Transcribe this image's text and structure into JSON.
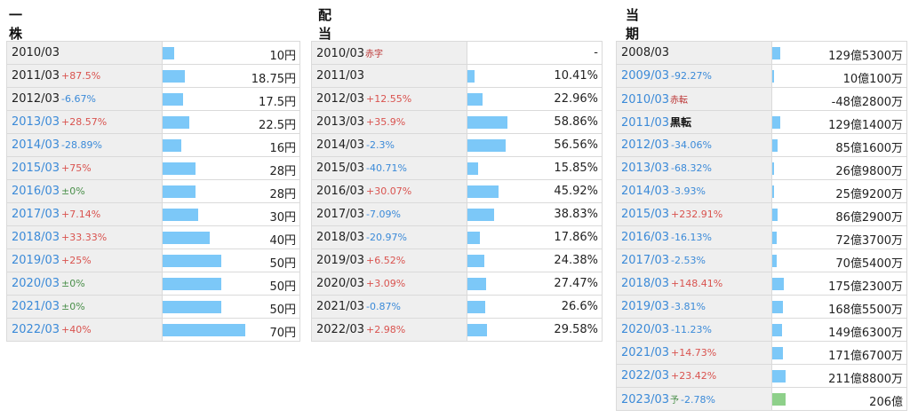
{
  "panels": [
    {
      "title": "一株配当",
      "rows": [
        {
          "year": "2010/03",
          "chg": "",
          "dir": "",
          "val": "10円",
          "bar": 0.0857
        },
        {
          "year": "2011/03",
          "chg": "+87.5%",
          "dir": "up",
          "val": "18.75円",
          "bar": 0.1607
        },
        {
          "year": "2012/03",
          "chg": "-6.67%",
          "dir": "down",
          "val": "17.5円",
          "bar": 0.15,
          "blueYear": false
        },
        {
          "year": "2013/03",
          "chg": "+28.57%",
          "dir": "up",
          "val": "22.5円",
          "bar": 0.1929,
          "blueYear": true
        },
        {
          "year": "2014/03",
          "chg": "-28.89%",
          "dir": "down",
          "val": "16円",
          "bar": 0.1371,
          "blueYear": true
        },
        {
          "year": "2015/03",
          "chg": "+75%",
          "dir": "up",
          "val": "28円",
          "bar": 0.24,
          "blueYear": true
        },
        {
          "year": "2016/03",
          "chg": "±0%",
          "dir": "flat",
          "val": "28円",
          "bar": 0.24,
          "blueYear": true
        },
        {
          "year": "2017/03",
          "chg": "+7.14%",
          "dir": "up",
          "val": "30円",
          "bar": 0.2571,
          "blueYear": true
        },
        {
          "year": "2018/03",
          "chg": "+33.33%",
          "dir": "up",
          "val": "40円",
          "bar": 0.3429,
          "blueYear": true
        },
        {
          "year": "2019/03",
          "chg": "+25%",
          "dir": "up",
          "val": "50円",
          "bar": 0.4286,
          "blueYear": true
        },
        {
          "year": "2020/03",
          "chg": "±0%",
          "dir": "flat",
          "val": "50円",
          "bar": 0.4286,
          "blueYear": true
        },
        {
          "year": "2021/03",
          "chg": "±0%",
          "dir": "flat",
          "val": "50円",
          "bar": 0.4286,
          "blueYear": true
        },
        {
          "year": "2022/03",
          "chg": "+40%",
          "dir": "up",
          "val": "70円",
          "bar": 0.6,
          "blueYear": true
        }
      ]
    },
    {
      "title": "配当性向",
      "rows": [
        {
          "year": "2010/03",
          "tag": "赤字",
          "tagType": "red",
          "chg": "",
          "dir": "",
          "val": "-",
          "bar": 0
        },
        {
          "year": "2011/03",
          "chg": "",
          "dir": "",
          "val": "10.41%",
          "bar": 0.0521
        },
        {
          "year": "2012/03",
          "chg": "+12.55%",
          "dir": "up",
          "val": "22.96%",
          "bar": 0.1148
        },
        {
          "year": "2013/03",
          "chg": "+35.9%",
          "dir": "up",
          "val": "58.86%",
          "bar": 0.2943
        },
        {
          "year": "2014/03",
          "chg": "-2.3%",
          "dir": "down",
          "val": "56.56%",
          "bar": 0.2828
        },
        {
          "year": "2015/03",
          "chg": "-40.71%",
          "dir": "down",
          "val": "15.85%",
          "bar": 0.0793
        },
        {
          "year": "2016/03",
          "chg": "+30.07%",
          "dir": "up",
          "val": "45.92%",
          "bar": 0.2296
        },
        {
          "year": "2017/03",
          "chg": "-7.09%",
          "dir": "down",
          "val": "38.83%",
          "bar": 0.1942
        },
        {
          "year": "2018/03",
          "chg": "-20.97%",
          "dir": "down",
          "val": "17.86%",
          "bar": 0.0893
        },
        {
          "year": "2019/03",
          "chg": "+6.52%",
          "dir": "up",
          "val": "24.38%",
          "bar": 0.1219
        },
        {
          "year": "2020/03",
          "chg": "+3.09%",
          "dir": "up",
          "val": "27.47%",
          "bar": 0.1374
        },
        {
          "year": "2021/03",
          "chg": "-0.87%",
          "dir": "down",
          "val": "26.6%",
          "bar": 0.133
        },
        {
          "year": "2022/03",
          "chg": "+2.98%",
          "dir": "up",
          "val": "29.58%",
          "bar": 0.1479
        }
      ]
    },
    {
      "title": "当期純利益",
      "rows": [
        {
          "year": "2008/03",
          "chg": "",
          "dir": "",
          "val": "129億5300万",
          "bar": 0.0613
        },
        {
          "year": "2009/03",
          "chg": "-92.27%",
          "dir": "down",
          "val": "10億100万",
          "bar": 0.0047,
          "blueYear": true
        },
        {
          "year": "2010/03",
          "tag": "赤転",
          "tagType": "red",
          "chg": "",
          "dir": "",
          "val": "-48億2800万",
          "bar": 0,
          "blueYear": true
        },
        {
          "year": "2011/03",
          "tag": "黒転",
          "tagType": "black",
          "chg": "",
          "dir": "",
          "val": "129億1400万",
          "bar": 0.0612,
          "blueYear": true
        },
        {
          "year": "2012/03",
          "chg": "-34.06%",
          "dir": "down",
          "val": "85億1600万",
          "bar": 0.0403,
          "blueYear": true
        },
        {
          "year": "2013/03",
          "chg": "-68.32%",
          "dir": "down",
          "val": "26億9800万",
          "bar": 0.0128,
          "blueYear": true
        },
        {
          "year": "2014/03",
          "chg": "-3.93%",
          "dir": "down",
          "val": "25億9200万",
          "bar": 0.0123,
          "blueYear": true
        },
        {
          "year": "2015/03",
          "chg": "+232.91%",
          "dir": "up",
          "val": "86億2900万",
          "bar": 0.0409,
          "blueYear": true
        },
        {
          "year": "2016/03",
          "chg": "-16.13%",
          "dir": "down",
          "val": "72億3700万",
          "bar": 0.0343,
          "blueYear": true
        },
        {
          "year": "2017/03",
          "chg": "-2.53%",
          "dir": "down",
          "val": "70億5400万",
          "bar": 0.0334,
          "blueYear": true
        },
        {
          "year": "2018/03",
          "chg": "+148.41%",
          "dir": "up",
          "val": "175億2300万",
          "bar": 0.083,
          "blueYear": true
        },
        {
          "year": "2019/03",
          "chg": "-3.81%",
          "dir": "down",
          "val": "168億5500万",
          "bar": 0.0798,
          "blueYear": true
        },
        {
          "year": "2020/03",
          "chg": "-11.23%",
          "dir": "down",
          "val": "149億6300万",
          "bar": 0.0709,
          "blueYear": true
        },
        {
          "year": "2021/03",
          "chg": "+14.73%",
          "dir": "up",
          "val": "171億6700万",
          "bar": 0.0813,
          "blueYear": true
        },
        {
          "year": "2022/03",
          "chg": "+23.42%",
          "dir": "up",
          "val": "211億8800万",
          "bar": 0.1003,
          "blueYear": true
        },
        {
          "year": "2023/03",
          "tag": "予",
          "tagType": "green",
          "chg": "-2.78%",
          "dir": "down",
          "val": "206億",
          "bar": 0.0976,
          "estimate": true,
          "blueYear": true
        }
      ]
    }
  ],
  "colors": {
    "bar": "#7cc8f8",
    "estimate_bar": "#8ed08a",
    "up": "#d9534f",
    "down": "#3b8ad8",
    "flat": "#4a8f4a",
    "label_bg": "#efefef"
  }
}
